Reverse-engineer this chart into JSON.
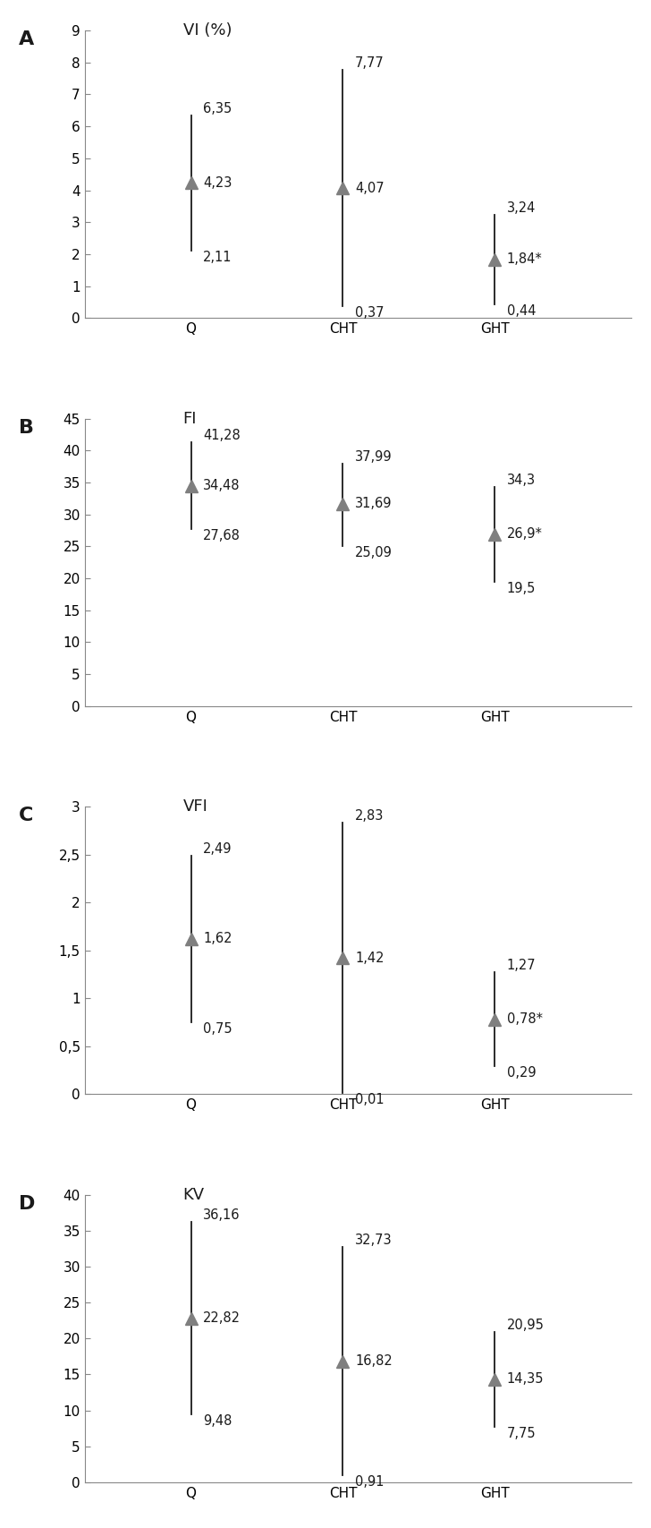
{
  "panels": [
    {
      "label": "A",
      "title": "VI (%)",
      "ylim": [
        0,
        9
      ],
      "yticks": [
        0,
        1,
        2,
        3,
        4,
        5,
        6,
        7,
        8,
        9
      ],
      "ytick_labels": [
        "0",
        "1",
        "2",
        "3",
        "4",
        "5",
        "6",
        "7",
        "8",
        "9"
      ],
      "groups": [
        "Q",
        "CHT",
        "GHT"
      ],
      "medians": [
        4.23,
        4.07,
        1.84
      ],
      "uppers": [
        6.35,
        7.77,
        3.24
      ],
      "lowers": [
        2.11,
        0.37,
        0.44
      ],
      "labels_median": [
        "4,23",
        "4,07",
        "1,84*"
      ],
      "labels_upper": [
        "6,35",
        "7,77",
        "3,24"
      ],
      "labels_lower": [
        "2,11",
        "0,37",
        "0,44"
      ]
    },
    {
      "label": "B",
      "title": "FI",
      "ylim": [
        0,
        45
      ],
      "yticks": [
        0,
        5,
        10,
        15,
        20,
        25,
        30,
        35,
        40,
        45
      ],
      "ytick_labels": [
        "0",
        "5",
        "10",
        "15",
        "20",
        "25",
        "30",
        "35",
        "40",
        "45"
      ],
      "groups": [
        "Q",
        "CHT",
        "GHT"
      ],
      "medians": [
        34.48,
        31.69,
        26.9
      ],
      "uppers": [
        41.28,
        37.99,
        34.3
      ],
      "lowers": [
        27.68,
        25.09,
        19.5
      ],
      "labels_median": [
        "34,48",
        "31,69",
        "26,9*"
      ],
      "labels_upper": [
        "41,28",
        "37,99",
        "34,3"
      ],
      "labels_lower": [
        "27,68",
        "25,09",
        "19,5"
      ]
    },
    {
      "label": "C",
      "title": "VFI",
      "ylim": [
        0,
        3
      ],
      "yticks": [
        0,
        0.5,
        1.0,
        1.5,
        2.0,
        2.5,
        3.0
      ],
      "ytick_labels": [
        "0",
        "0,5",
        "1",
        "1,5",
        "2",
        "2,5",
        "3"
      ],
      "groups": [
        "Q",
        "CHT",
        "GHT"
      ],
      "medians": [
        1.62,
        1.42,
        0.78
      ],
      "uppers": [
        2.49,
        2.83,
        1.27
      ],
      "lowers": [
        0.75,
        0.01,
        0.29
      ],
      "labels_median": [
        "1,62",
        "1,42",
        "0,78*"
      ],
      "labels_upper": [
        "2,49",
        "2,83",
        "1,27"
      ],
      "labels_lower": [
        "0,75",
        "0,01",
        "0,29"
      ]
    },
    {
      "label": "D",
      "title": "KV",
      "ylim": [
        0,
        40
      ],
      "yticks": [
        0,
        5,
        10,
        15,
        20,
        25,
        30,
        35,
        40
      ],
      "ytick_labels": [
        "0",
        "5",
        "10",
        "15",
        "20",
        "25",
        "30",
        "35",
        "40"
      ],
      "groups": [
        "Q",
        "CHT",
        "GHT"
      ],
      "medians": [
        22.82,
        16.82,
        14.35
      ],
      "uppers": [
        36.16,
        32.73,
        20.95
      ],
      "lowers": [
        9.48,
        0.91,
        7.75
      ],
      "labels_median": [
        "22,82",
        "16,82",
        "14,35"
      ],
      "labels_upper": [
        "36,16",
        "32,73",
        "20,95"
      ],
      "labels_lower": [
        "9,48",
        "0,91",
        "7,75"
      ]
    }
  ],
  "marker_color": "#7f7f7f",
  "line_color": "#1a1a1a",
  "text_color": "#1a1a1a",
  "bg_color": "#ffffff",
  "fontsize_title": 13,
  "fontsize_panel_label": 16,
  "fontsize_tick": 11,
  "fontsize_value": 10.5
}
